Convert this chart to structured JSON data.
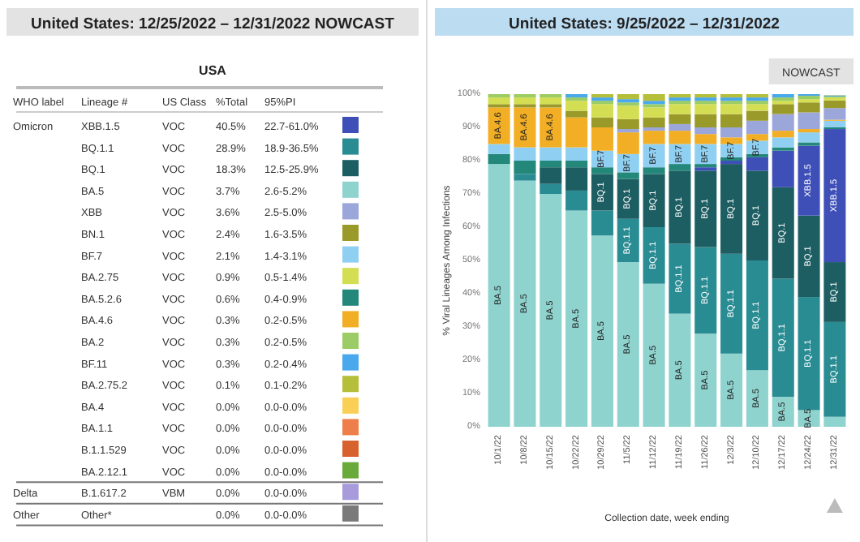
{
  "chart_data": [
    {
      "type": "other",
      "title": "United States: 12/25/2022 – 12/31/2022 NOWCAST",
      "subtitle": "USA",
      "categories": [
        "WHO label",
        "Lineage #",
        "US Class",
        "%Total",
        "95%PI"
      ],
      "y_categories": [
        "XBB.1.5",
        "BQ.1.1",
        "BQ.1",
        "BA.5",
        "XBB",
        "BN.1",
        "BF.7",
        "BA.2.75",
        "BA.5.2.6",
        "BA.4.6",
        "BA.2",
        "BF.11",
        "BA.2.75.2",
        "BA.4",
        "BA.1.1",
        "B.1.1.529",
        "BA.2.12.1",
        "B.1.617.2",
        "Other*"
      ],
      "cell_labels": [
        [
          "Omicron",
          "VOC",
          "40.5%",
          "22.7-61.0%"
        ],
        [
          null,
          "VOC",
          "28.9%",
          "18.9-36.5%"
        ],
        [
          null,
          "VOC",
          "18.3%",
          "12.5-25.9%"
        ],
        [
          null,
          "VOC",
          "3.7%",
          "2.6-5.2%"
        ],
        [
          null,
          "VOC",
          "3.6%",
          "2.5-5.0%"
        ],
        [
          null,
          "VOC",
          "2.4%",
          "1.6-3.5%"
        ],
        [
          null,
          "VOC",
          "2.1%",
          "1.4-3.1%"
        ],
        [
          null,
          "VOC",
          "0.9%",
          "0.5-1.4%"
        ],
        [
          null,
          "VOC",
          "0.6%",
          "0.4-0.9%"
        ],
        [
          null,
          "VOC",
          "0.3%",
          "0.2-0.5%"
        ],
        [
          null,
          "VOC",
          "0.3%",
          "0.2-0.5%"
        ],
        [
          null,
          "VOC",
          "0.3%",
          "0.2-0.4%"
        ],
        [
          null,
          "VOC",
          "0.1%",
          "0.1-0.2%"
        ],
        [
          null,
          "VOC",
          "0.0%",
          "0.0-0.0%"
        ],
        [
          null,
          "VOC",
          "0.0%",
          "0.0-0.0%"
        ],
        [
          null,
          "VOC",
          "0.0%",
          "0.0-0.0%"
        ],
        [
          null,
          "VOC",
          "0.0%",
          "0.0-0.0%"
        ],
        [
          "Delta",
          "VBM",
          "0.0%",
          "0.0-0.0%"
        ],
        [
          "Other",
          null,
          "0.0%",
          "0.0-0.0%"
        ]
      ],
      "colors": [
        "#3f4fb8",
        "#2a8c93",
        "#1d5e63",
        "#8fd3cf",
        "#9ba6db",
        "#9a9a2a",
        "#8fd0f2",
        "#d4de52",
        "#23877a",
        "#f2ae24",
        "#9ccc65",
        "#4aa8ec",
        "#b5bf3a",
        "#f9cf56",
        "#ef7f4a",
        "#d8622e",
        "#6aaa3b",
        "#a89bdc",
        "#7a7a7a"
      ]
    },
    {
      "type": "bar",
      "stacked": true,
      "title": "United States: 9/25/2022 – 12/31/2022",
      "xlabel": "Collection date, week ending",
      "ylabel": "% Viral Lineages Among Infections",
      "annotations": [
        "NOWCAST"
      ],
      "categories": [
        "10/1/22",
        "10/8/22",
        "10/15/22",
        "10/22/22",
        "10/29/22",
        "11/5/22",
        "11/12/22",
        "11/19/22",
        "11/26/22",
        "12/3/22",
        "12/10/22",
        "12/17/22",
        "12/24/22",
        "12/31/22"
      ],
      "ylim": [
        0,
        100
      ],
      "yticks": [
        {
          "value": 0,
          "label": "0%"
        },
        {
          "value": 10,
          "label": "10%"
        },
        {
          "value": 20,
          "label": "20%"
        },
        {
          "value": 30,
          "label": "30%"
        },
        {
          "value": 40,
          "label": "40%"
        },
        {
          "value": 50,
          "label": "50%"
        },
        {
          "value": 60,
          "label": "60%"
        },
        {
          "value": 70,
          "label": "70%"
        },
        {
          "value": 80,
          "label": "80%"
        },
        {
          "value": 90,
          "label": "90%"
        },
        {
          "value": 100,
          "label": "100%"
        }
      ],
      "series": [
        {
          "color": "#8fd3cf",
          "values": [
            79,
            74,
            70,
            65,
            57.5,
            49.5,
            43,
            34,
            28,
            22,
            17,
            9,
            5,
            3
          ],
          "value_labels": [
            "BA.5",
            "BA.5",
            "BA.5",
            "BA.5",
            "BA.5",
            "BA.5",
            "BA.5",
            "BA.5",
            "BA.5",
            "BA.5",
            "BA.5",
            "BA.5",
            "BA.5",
            null
          ]
        },
        {
          "color": "#2a8c93",
          "values": [
            0,
            2,
            3,
            6,
            7.5,
            13,
            17,
            21,
            26,
            30,
            33,
            35.5,
            34,
            28.5
          ],
          "value_labels": [
            null,
            null,
            null,
            null,
            null,
            "BQ.1.1",
            "BQ.1.1",
            "BQ.1.1",
            "BQ.1.1",
            "BQ.1.1",
            "BQ.1.1",
            "BQ.1.1",
            "BQ.1.1",
            "BQ.1.1"
          ]
        },
        {
          "color": "#1d5e63",
          "values": [
            0,
            0,
            5,
            7,
            11,
            12,
            16,
            22,
            23,
            27,
            27,
            27.5,
            24.5,
            18
          ],
          "value_labels": [
            null,
            null,
            null,
            null,
            "BQ.1",
            "BQ.1",
            "BQ.1",
            "BQ.1",
            "BQ.1",
            "BQ.1",
            "BQ.1",
            "BQ.1",
            "BQ.1",
            "BQ.1"
          ]
        },
        {
          "color": "#3f4fb8",
          "values": [
            0,
            0,
            0,
            0,
            0,
            0,
            0,
            0,
            1,
            1,
            4,
            11,
            21,
            40
          ],
          "value_labels": [
            null,
            null,
            null,
            null,
            null,
            null,
            null,
            null,
            null,
            null,
            null,
            null,
            "XBB.1.5",
            "XBB.1.5"
          ]
        },
        {
          "color": "#23877a",
          "values": [
            3,
            4,
            2,
            2,
            2,
            2,
            2,
            2,
            1,
            1,
            1,
            1,
            1,
            0.5
          ]
        },
        {
          "color": "#8fd0f2",
          "values": [
            3,
            4,
            4,
            4,
            5,
            5.5,
            7,
            6,
            6,
            4,
            4,
            3,
            3,
            2
          ],
          "value_labels": [
            null,
            null,
            null,
            null,
            "BF.7",
            "BF.7",
            "BF.7",
            "BF.7",
            "BF.7",
            "BF.7",
            "BF.7",
            null,
            null,
            null
          ]
        },
        {
          "color": "#f2ae24",
          "values": [
            11,
            12,
            12,
            9,
            7,
            6.5,
            4,
            4,
            3,
            2,
            2,
            2,
            1,
            0.3
          ],
          "value_labels": [
            "BA.4.6",
            "BA.4.6",
            "BA.4.6",
            null,
            null,
            null,
            null,
            null,
            null,
            null,
            null,
            null,
            null,
            null
          ]
        },
        {
          "color": "#9ba6db",
          "values": [
            0,
            0,
            0,
            0,
            0,
            1,
            1,
            2,
            2,
            3,
            4,
            5,
            5,
            3.5
          ]
        },
        {
          "color": "#9a9a2a",
          "values": [
            1,
            1,
            1,
            2,
            3,
            3,
            3,
            3,
            4,
            4,
            3,
            3,
            3,
            2.3
          ]
        },
        {
          "color": "#d4de52",
          "values": [
            2,
            2,
            2,
            3,
            4,
            4,
            3,
            3,
            3,
            3,
            2,
            1,
            1,
            0.9
          ]
        },
        {
          "color": "#9ccc65",
          "values": [
            1,
            1,
            1,
            1,
            1,
            1,
            1,
            1,
            1,
            1,
            1,
            1,
            1,
            0.3
          ]
        },
        {
          "color": "#4aa8ec",
          "values": [
            0,
            0,
            0,
            1,
            1,
            1,
            1,
            1,
            1,
            1,
            1,
            1,
            0.5,
            0.3
          ]
        },
        {
          "color": "#b5bf3a",
          "values": [
            0,
            0,
            0,
            0,
            1,
            1.5,
            2,
            1,
            1,
            1,
            1,
            0,
            0,
            0.1
          ]
        }
      ]
    }
  ]
}
